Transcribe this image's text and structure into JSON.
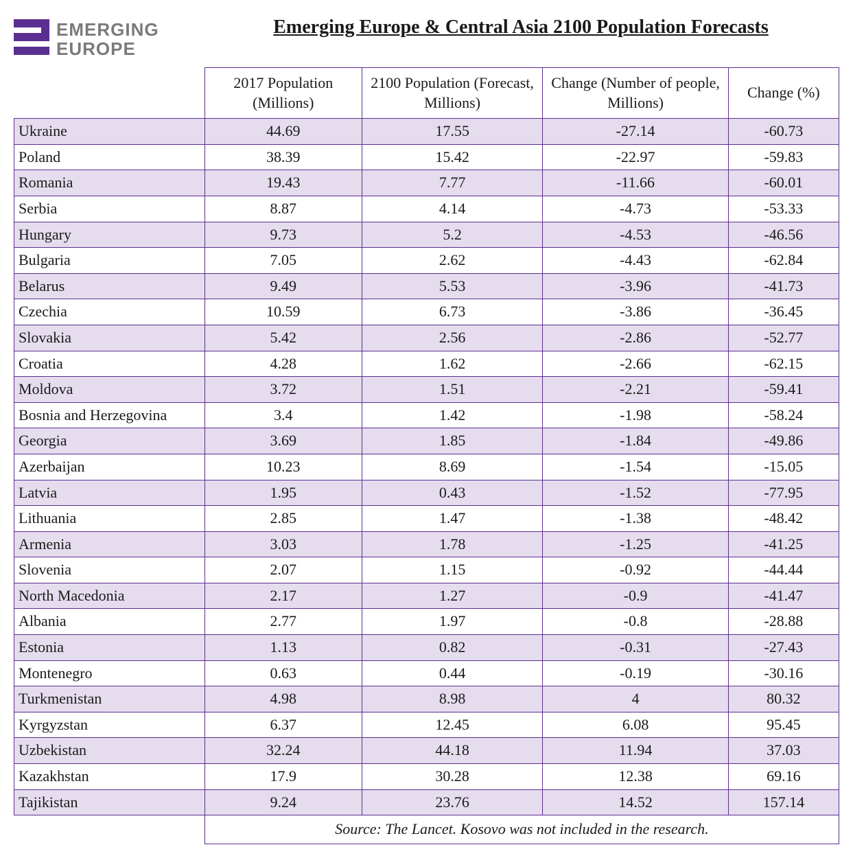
{
  "brand": {
    "line1": "EMERGING",
    "line2": "EUROPE",
    "mark_color": "#5b2e91",
    "text_color": "#7a7a7a"
  },
  "title": "Emerging Europe & Central Asia 2100 Population Forecasts",
  "colors": {
    "border": "#5b2e91",
    "row_odd_bg": "#e5dced",
    "row_even_bg": "#ffffff"
  },
  "columns": [
    "",
    "2017 Population (Millions)",
    "2100 Population (Forecast, Millions)",
    "Change (Number of people, Millions)",
    "Change (%)"
  ],
  "rows": [
    [
      "Ukraine",
      "44.69",
      "17.55",
      "-27.14",
      "-60.73"
    ],
    [
      "Poland",
      "38.39",
      "15.42",
      "-22.97",
      "-59.83"
    ],
    [
      "Romania",
      "19.43",
      "7.77",
      "-11.66",
      "-60.01"
    ],
    [
      "Serbia",
      "8.87",
      "4.14",
      "-4.73",
      "-53.33"
    ],
    [
      "Hungary",
      "9.73",
      "5.2",
      "-4.53",
      "-46.56"
    ],
    [
      "Bulgaria",
      "7.05",
      "2.62",
      "-4.43",
      "-62.84"
    ],
    [
      "Belarus",
      "9.49",
      "5.53",
      "-3.96",
      "-41.73"
    ],
    [
      "Czechia",
      "10.59",
      "6.73",
      "-3.86",
      "-36.45"
    ],
    [
      "Slovakia",
      "5.42",
      "2.56",
      "-2.86",
      "-52.77"
    ],
    [
      "Croatia",
      "4.28",
      "1.62",
      "-2.66",
      "-62.15"
    ],
    [
      "Moldova",
      "3.72",
      "1.51",
      "-2.21",
      "-59.41"
    ],
    [
      "Bosnia and Herzegovina",
      "3.4",
      "1.42",
      "-1.98",
      "-58.24"
    ],
    [
      "Georgia",
      "3.69",
      "1.85",
      "-1.84",
      "-49.86"
    ],
    [
      "Azerbaijan",
      "10.23",
      "8.69",
      "-1.54",
      "-15.05"
    ],
    [
      "Latvia",
      "1.95",
      "0.43",
      "-1.52",
      "-77.95"
    ],
    [
      "Lithuania",
      "2.85",
      "1.47",
      "-1.38",
      "-48.42"
    ],
    [
      "Armenia",
      "3.03",
      "1.78",
      "-1.25",
      "-41.25"
    ],
    [
      "Slovenia",
      "2.07",
      "1.15",
      "-0.92",
      "-44.44"
    ],
    [
      "North Macedonia",
      "2.17",
      "1.27",
      "-0.9",
      "-41.47"
    ],
    [
      "Albania",
      "2.77",
      "1.97",
      "-0.8",
      "-28.88"
    ],
    [
      "Estonia",
      "1.13",
      "0.82",
      "-0.31",
      "-27.43"
    ],
    [
      "Montenegro",
      "0.63",
      "0.44",
      "-0.19",
      "-30.16"
    ],
    [
      "Turkmenistan",
      "4.98",
      "8.98",
      "4",
      "80.32"
    ],
    [
      "Kyrgyzstan",
      "6.37",
      "12.45",
      "6.08",
      "95.45"
    ],
    [
      "Uzbekistan",
      "32.24",
      "44.18",
      "11.94",
      "37.03"
    ],
    [
      "Kazakhstan",
      "17.9",
      "30.28",
      "12.38",
      "69.16"
    ],
    [
      "Tajikistan",
      "9.24",
      "23.76",
      "14.52",
      "157.14"
    ]
  ],
  "footer": "Source: The Lancet. Kosovo was not included in the research."
}
